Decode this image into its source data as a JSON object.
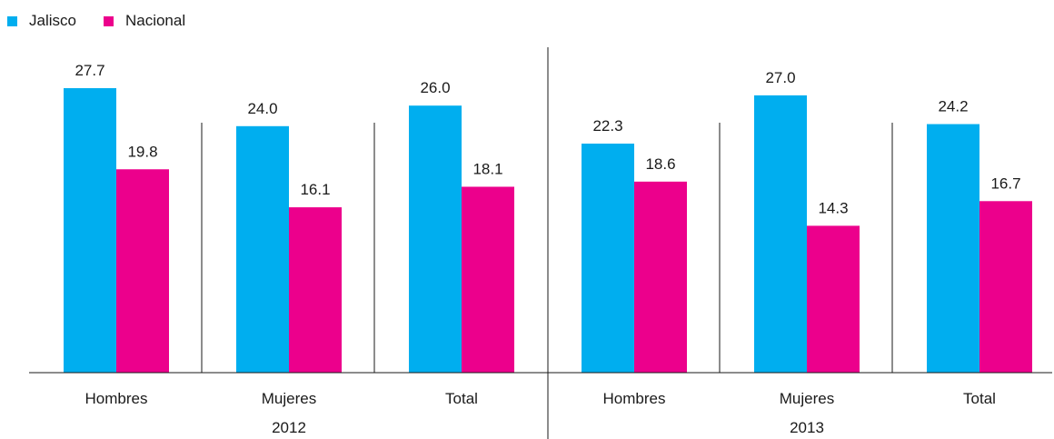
{
  "chart_data": {
    "type": "bar",
    "groups": [
      {
        "year": "2012",
        "categories": [
          "Hombres",
          "Mujeres",
          "Total"
        ]
      },
      {
        "year": "2013",
        "categories": [
          "Hombres",
          "Mujeres",
          "Total"
        ]
      }
    ],
    "series": [
      {
        "name": "Jalisco",
        "color": "#00aeef",
        "values": [
          27.7,
          24.0,
          26.0,
          22.3,
          27.0,
          24.2
        ]
      },
      {
        "name": "Nacional",
        "color": "#ec008c",
        "values": [
          19.8,
          16.1,
          18.1,
          18.6,
          14.3,
          16.7
        ]
      }
    ],
    "ylim": [
      0,
      30
    ],
    "grid": false,
    "legend": "top-left"
  }
}
